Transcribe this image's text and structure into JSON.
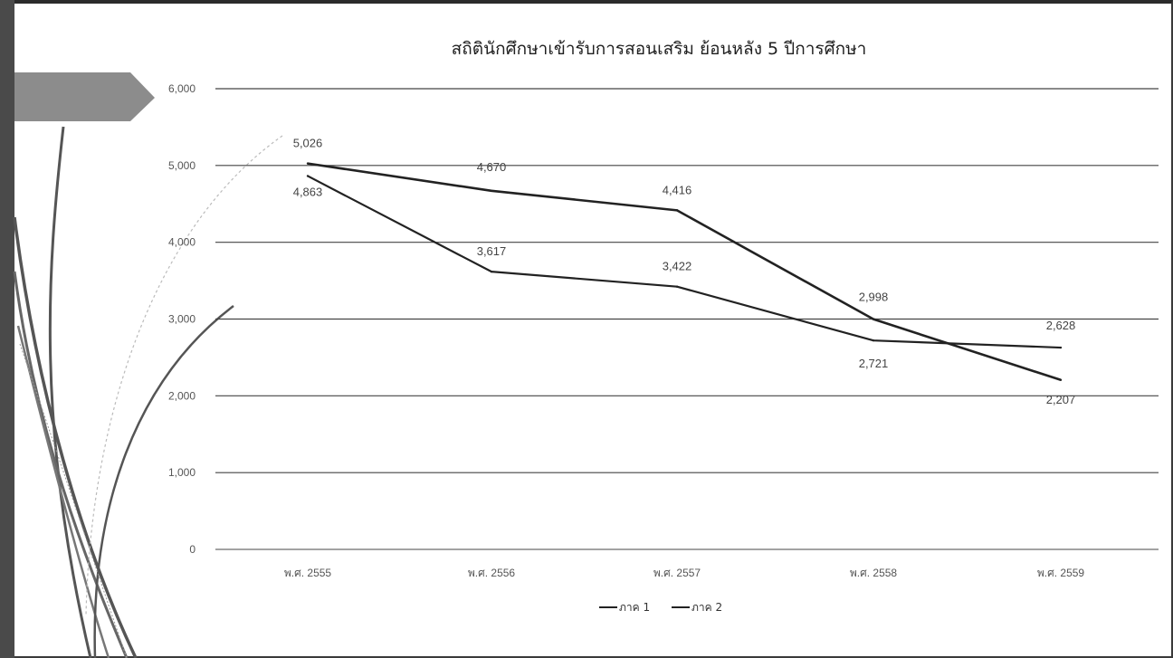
{
  "slide": {
    "colors": {
      "bar": "#4a4a4a",
      "tab": "#8c8c8c",
      "line": "#222222",
      "grid": "#444444"
    }
  },
  "chart_data": {
    "type": "line",
    "title": "สถิตินักศึกษาเข้ารับการสอนเสริม ย้อนหลัง 5 ปีการศึกษา",
    "categories": [
      "พ.ศ. 2555",
      "พ.ศ. 2556",
      "พ.ศ. 2557",
      "พ.ศ. 2558",
      "พ.ศ. 2559"
    ],
    "series": [
      {
        "name": "ภาค 1",
        "values": [
          5026,
          4670,
          4416,
          2998,
          2207
        ],
        "labels": [
          "5,026",
          "4,670",
          "4,416",
          "2,998",
          "2,207"
        ]
      },
      {
        "name": "ภาค 2",
        "values": [
          4863,
          3617,
          3422,
          2721,
          2628
        ],
        "labels": [
          "4,863",
          "3,617",
          "3,422",
          "2,721",
          "2,628"
        ]
      }
    ],
    "ylim": [
      0,
      6000
    ],
    "yticks": [
      0,
      1000,
      2000,
      3000,
      4000,
      5000,
      6000
    ],
    "ytick_labels": [
      "0",
      "1,000",
      "2,000",
      "3,000",
      "4,000",
      "5,000",
      "6,000"
    ],
    "grid": true,
    "legend_position": "bottom"
  }
}
